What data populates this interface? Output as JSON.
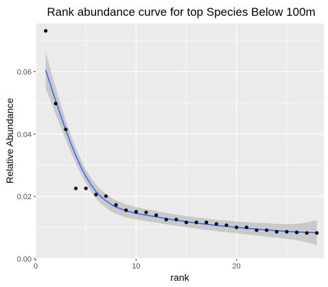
{
  "chart_data": {
    "type": "scatter",
    "title": "Rank abundance curve for top Species Below 100m",
    "xlabel": "rank",
    "ylabel": "Relative Abundance",
    "xlim": [
      0,
      28.7
    ],
    "ylim": [
      0,
      0.0755
    ],
    "x_ticks": [
      0,
      10,
      20
    ],
    "x_tick_labels": [
      "0",
      "10",
      "20"
    ],
    "x_minor_ticks": [
      5,
      15,
      25
    ],
    "y_ticks": [
      0.0,
      0.02,
      0.04,
      0.06
    ],
    "y_tick_labels": [
      "0.00",
      "0.02",
      "0.04",
      "0.06"
    ],
    "y_minor_ticks": [
      0.01,
      0.03,
      0.05,
      0.07
    ],
    "grid": true,
    "legend": "none",
    "colors": {
      "panel_background": "#ebebeb",
      "grid": "#ffffff",
      "points": "#000000",
      "smooth_line": "#3366ff",
      "confidence_band": "#bdbdbd",
      "tick_label": "#4d4d4d"
    },
    "series": [
      {
        "kind": "points",
        "x": [
          1,
          2,
          3,
          4,
          5,
          6,
          7,
          8,
          9,
          10,
          11,
          12,
          13,
          14,
          15,
          16,
          17,
          18,
          19,
          20,
          21,
          22,
          23,
          24,
          25,
          26,
          27,
          28
        ],
        "y": [
          0.0731,
          0.0498,
          0.0415,
          0.0226,
          0.0226,
          0.0206,
          0.0201,
          0.0173,
          0.0156,
          0.0151,
          0.0149,
          0.014,
          0.0126,
          0.0126,
          0.0117,
          0.0117,
          0.0117,
          0.0112,
          0.0108,
          0.0101,
          0.0101,
          0.0092,
          0.0092,
          0.0087,
          0.0087,
          0.0085,
          0.0083,
          0.0083
        ]
      },
      {
        "kind": "smooth",
        "x": [
          1,
          1.5,
          2,
          2.5,
          3,
          3.5,
          4,
          4.5,
          5,
          5.5,
          6,
          6.5,
          7,
          7.5,
          8,
          9,
          10,
          11,
          12,
          13,
          14,
          15,
          16,
          17,
          18,
          19,
          20,
          21,
          22,
          23,
          24,
          25,
          26,
          27,
          28
        ],
        "y": [
          0.0605,
          0.0555,
          0.0506,
          0.0459,
          0.0413,
          0.037,
          0.0331,
          0.0295,
          0.0264,
          0.0238,
          0.0216,
          0.0199,
          0.0186,
          0.0175,
          0.0166,
          0.0154,
          0.0146,
          0.014,
          0.0135,
          0.0129,
          0.0124,
          0.0119,
          0.0115,
          0.0111,
          0.0107,
          0.0104,
          0.0101,
          0.0098,
          0.0095,
          0.0093,
          0.009,
          0.0088,
          0.0086,
          0.0085,
          0.0084
        ],
        "lower": [
          0.0547,
          0.0505,
          0.0463,
          0.0422,
          0.0381,
          0.0342,
          0.0306,
          0.0272,
          0.0242,
          0.0216,
          0.0194,
          0.0177,
          0.0164,
          0.0153,
          0.0144,
          0.0133,
          0.0126,
          0.0121,
          0.0116,
          0.0111,
          0.0106,
          0.0101,
          0.0097,
          0.0093,
          0.0089,
          0.0085,
          0.0082,
          0.0078,
          0.0075,
          0.0071,
          0.0068,
          0.0064,
          0.006,
          0.0053,
          0.0044
        ],
        "upper": [
          0.0663,
          0.0605,
          0.0549,
          0.0496,
          0.0445,
          0.0398,
          0.0356,
          0.0318,
          0.0286,
          0.026,
          0.0238,
          0.0221,
          0.0208,
          0.0197,
          0.0188,
          0.0175,
          0.0166,
          0.0159,
          0.0154,
          0.0147,
          0.0142,
          0.0137,
          0.0133,
          0.0129,
          0.0125,
          0.0123,
          0.012,
          0.0118,
          0.0115,
          0.0115,
          0.0112,
          0.0112,
          0.0112,
          0.0117,
          0.0124
        ]
      }
    ]
  }
}
